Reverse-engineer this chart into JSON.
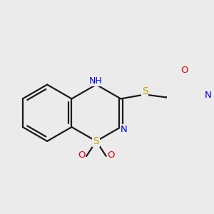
{
  "bg_color": "#ebebeb",
  "bond_color": "#1a1a1a",
  "atom_colors": {
    "S": "#c8a000",
    "N": "#0000ee",
    "O": "#ee0000",
    "NH": "#0000ee"
  },
  "line_width": 1.6,
  "font_size": 9.5
}
